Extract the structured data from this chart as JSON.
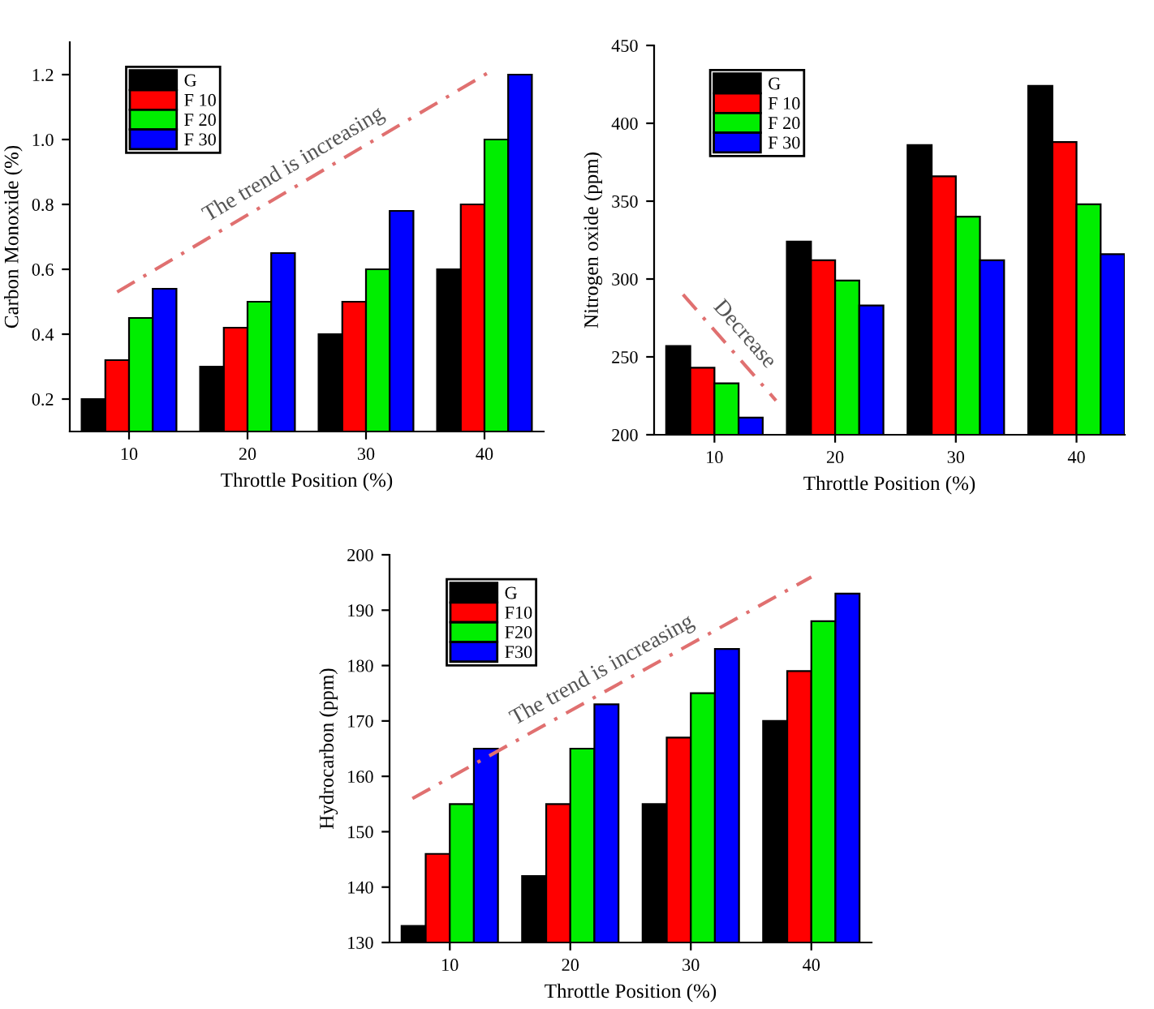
{
  "chart_data": [
    {
      "type": "bar",
      "xlabel": "Throttle Position (%)",
      "ylabel": "Carbon Monoxide (%)",
      "x": [
        10,
        20,
        30,
        40
      ],
      "xlim": [
        5,
        45
      ],
      "xticks": [
        10,
        20,
        30,
        40
      ],
      "ylim": [
        0.1,
        1.3
      ],
      "yticks": [
        0.2,
        0.4,
        0.6,
        0.8,
        {
          "value": 1.0,
          "label": "1.0"
        },
        1.2
      ],
      "legend": "top left",
      "grid": false,
      "series": [
        {
          "name": "G",
          "color": "#000000",
          "values": [
            0.2,
            0.3,
            0.4,
            0.6
          ]
        },
        {
          "name": "F 10",
          "color": "#ff0000",
          "values": [
            0.32,
            0.42,
            0.5,
            0.8
          ]
        },
        {
          "name": "F 20",
          "color": "#00ee00",
          "values": [
            0.45,
            0.5,
            0.6,
            1.0
          ]
        },
        {
          "name": "F 30",
          "color": "#0000ff",
          "values": [
            0.54,
            0.65,
            0.78,
            1.2
          ]
        },
        {
          "type": "line",
          "color": "#e07070",
          "line_style": "dashed",
          "x": [
            9,
            40.5
          ],
          "values": [
            0.53,
            1.21
          ]
        }
      ],
      "annotations": [
        "The trend is increasing"
      ]
    },
    {
      "type": "bar",
      "xlabel": "Throttle Position (%)",
      "ylabel": "Nitrogen oxide (ppm)",
      "x": [
        10,
        20,
        30,
        40
      ],
      "xlim": [
        5,
        44
      ],
      "xticks": [
        10,
        20,
        30,
        40
      ],
      "ylim": [
        200,
        450
      ],
      "yticks": [
        200,
        250,
        300,
        350,
        400,
        450
      ],
      "legend": "top left",
      "grid": false,
      "series": [
        {
          "name": "G",
          "color": "#000000",
          "values": [
            257,
            324,
            386,
            424
          ]
        },
        {
          "name": "F 10",
          "color": "#ff0000",
          "values": [
            243,
            312,
            366,
            388
          ]
        },
        {
          "name": "F 20",
          "color": "#00ee00",
          "values": [
            233,
            299,
            340,
            348
          ]
        },
        {
          "name": "F 30",
          "color": "#0000ff",
          "values": [
            211,
            283,
            312,
            316
          ]
        },
        {
          "type": "line",
          "color": "#e07070",
          "line_style": "dashed",
          "x": [
            7.4,
            15.1
          ],
          "values": [
            290,
            222
          ]
        }
      ],
      "annotations": [
        "Decrease"
      ]
    },
    {
      "type": "bar",
      "xlabel": "Throttle Position (%)",
      "ylabel": "Hydrocarbon (ppm)",
      "x": [
        10,
        20,
        30,
        40
      ],
      "xlim": [
        5,
        45
      ],
      "xticks": [
        10,
        20,
        30,
        40
      ],
      "ylim": [
        130,
        200
      ],
      "yticks": [
        130,
        140,
        150,
        160,
        170,
        180,
        190,
        200
      ],
      "legend": "top left",
      "grid": false,
      "series": [
        {
          "name": "G",
          "color": "#000000",
          "values": [
            133,
            142,
            155,
            170
          ]
        },
        {
          "name": "F10",
          "color": "#ff0000",
          "values": [
            146,
            155,
            167,
            179
          ]
        },
        {
          "name": "F20",
          "color": "#00ee00",
          "values": [
            155,
            165,
            175,
            188
          ]
        },
        {
          "name": "F30",
          "color": "#0000ff",
          "values": [
            165,
            173,
            183,
            193
          ]
        },
        {
          "type": "line",
          "color": "#e07070",
          "line_style": "dashed",
          "x": [
            6.9,
            40
          ],
          "values": [
            156,
            196
          ]
        }
      ],
      "annotations": [
        "The trend is increasing"
      ]
    }
  ]
}
